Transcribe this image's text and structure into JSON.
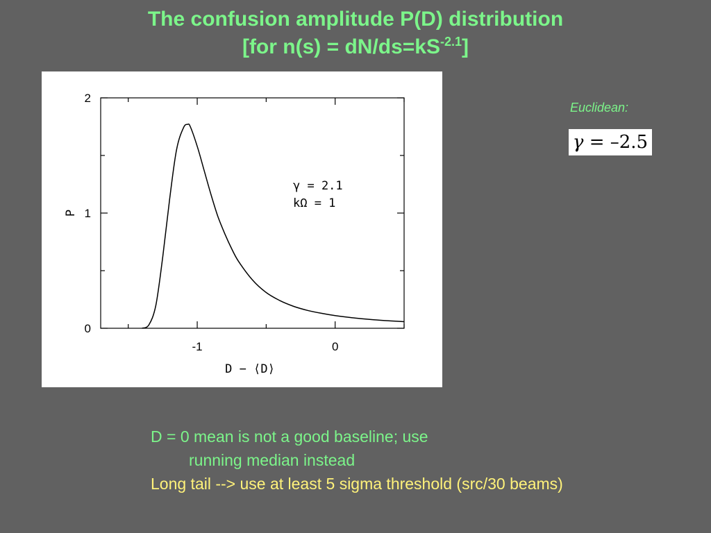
{
  "slide": {
    "title_line1": "The confusion amplitude P(D) distribution",
    "title_line2_main": "[for n(s) = dN/ds=kS",
    "title_line2_sup": "-2.1",
    "title_line2_end": "]",
    "euclidean_label": "Euclidean:",
    "euclidean_formula_gamma": "γ",
    "euclidean_formula_rest": " = –2.5",
    "notes": [
      "D = 0 mean is not a good baseline; use",
      "running median instead",
      "Long tail --> use at least 5 sigma threshold (src/30 beams)"
    ],
    "colors": {
      "background": "#616161",
      "title": "#7cf58a",
      "yellow_text": "#fff27a"
    }
  },
  "chart_data": {
    "type": "line",
    "xlabel": "D − ⟨D⟩",
    "ylabel": "P",
    "xlim": [
      -1.7,
      0.5
    ],
    "ylim": [
      0,
      2
    ],
    "xticks": [
      -1,
      0
    ],
    "xtick_labels": [
      "-1",
      "0"
    ],
    "yticks": [
      0,
      1,
      2
    ],
    "ytick_labels": [
      "0",
      "1",
      "2"
    ],
    "grid": false,
    "annotations": [
      "γ = 2.1",
      "kΩ = 1"
    ],
    "series": [
      {
        "x": [
          -1.4,
          -1.35,
          -1.3,
          -1.25,
          -1.2,
          -1.15,
          -1.1,
          -1.07,
          -1.05,
          -1.0,
          -0.95,
          -0.9,
          -0.85,
          -0.8,
          -0.75,
          -0.7,
          -0.6,
          -0.5,
          -0.4,
          -0.3,
          -0.2,
          -0.1,
          0.0,
          0.1,
          0.2,
          0.3,
          0.4,
          0.5
        ],
        "y": [
          0.0,
          0.03,
          0.2,
          0.62,
          1.12,
          1.55,
          1.74,
          1.77,
          1.75,
          1.58,
          1.37,
          1.16,
          0.97,
          0.82,
          0.69,
          0.58,
          0.42,
          0.31,
          0.24,
          0.19,
          0.155,
          0.13,
          0.11,
          0.095,
          0.082,
          0.072,
          0.064,
          0.057
        ]
      }
    ]
  }
}
